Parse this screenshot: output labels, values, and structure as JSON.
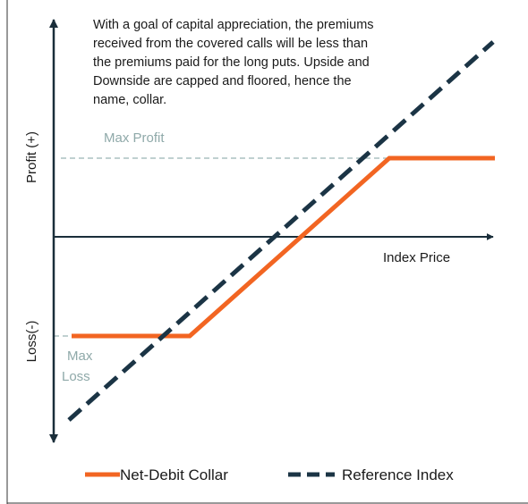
{
  "annotation": [
    "With a goal of capital appreciation, the premiums",
    "received from the covered calls will be less than",
    "the premiums paid for the long puts. Upside and",
    "Downside are capped and floored, hence the",
    "name, collar."
  ],
  "max_profit": "Max Profit",
  "max_loss": [
    "Max",
    "Loss"
  ],
  "x_axis_label": "Index Price",
  "y_axis_upper": "Profit (+)",
  "y_axis_lower": "Loss(-)",
  "legend": [
    "Net-Debit Collar",
    "Reference Index"
  ]
}
